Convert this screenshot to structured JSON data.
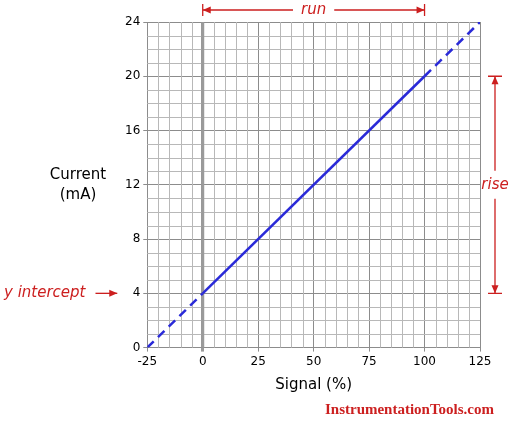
{
  "chart_data": {
    "type": "line",
    "xlabel": "Signal (%)",
    "ylabel": [
      "Current",
      "(mA)"
    ],
    "xlim": [
      -25,
      125
    ],
    "xticks": [
      -25,
      0,
      25,
      50,
      75,
      100,
      125
    ],
    "ylim": [
      0,
      24
    ],
    "yticks": [
      0,
      4,
      8,
      12,
      16,
      20,
      24
    ],
    "grid": true,
    "series": [
      {
        "x": [
          -25,
          0
        ],
        "values": [
          0,
          4
        ],
        "color": "#2a2ad8",
        "line_style": "dashed"
      },
      {
        "x": [
          0,
          100
        ],
        "values": [
          4,
          20
        ],
        "color": "#2a2ad8",
        "line_style": "solid"
      },
      {
        "x": [
          100,
          125
        ],
        "values": [
          20,
          24
        ],
        "color": "#2a2ad8",
        "line_style": "dashed"
      }
    ],
    "annotations": [
      {
        "text": "run",
        "x": [
          0,
          100
        ],
        "color": "#cc1f1f"
      },
      {
        "text": "rise",
        "y": [
          4,
          20
        ],
        "color": "#cc1f1f"
      },
      {
        "text": "y intercept",
        "y": 4,
        "color": "#cc1f1f"
      },
      {
        "text": "InstrumentationTools.com",
        "color": "#cc1f1f"
      }
    ]
  }
}
